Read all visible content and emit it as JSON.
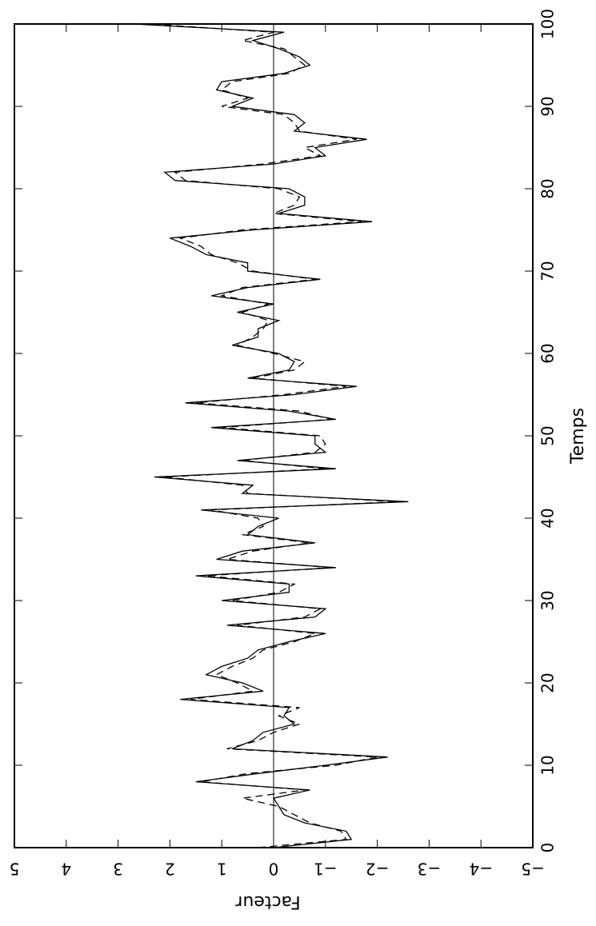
{
  "chart_data": {
    "type": "line",
    "xlabel": "Temps",
    "ylabel": "Facteur",
    "xlim": [
      0,
      100
    ],
    "ylim": [
      -5,
      5
    ],
    "x_ticks": [
      0,
      10,
      20,
      30,
      40,
      50,
      60,
      70,
      80,
      90,
      100
    ],
    "y_ticks": [
      -5,
      -4,
      -3,
      -2,
      -1,
      0,
      1,
      2,
      3,
      4,
      5
    ],
    "x_tick_labels": [
      "0",
      "10",
      "20",
      "30",
      "40",
      "50",
      "60",
      "70",
      "80",
      "90",
      "100"
    ],
    "y_tick_labels": [
      "−5",
      "−4",
      "−3",
      "−2",
      "−1",
      "0",
      "1",
      "2",
      "3",
      "4",
      "5"
    ],
    "zero_line": true,
    "grid": false,
    "series": [
      {
        "style": "solid",
        "x": [
          0,
          1,
          2,
          3,
          4,
          5,
          6,
          7,
          8,
          9,
          10,
          11,
          12,
          13,
          14,
          15,
          16,
          17,
          18,
          19,
          20,
          21,
          22,
          23,
          24,
          25,
          26,
          27,
          28,
          29,
          30,
          31,
          32,
          33,
          34,
          35,
          36,
          37,
          38,
          39,
          40,
          41,
          42,
          43,
          44,
          45,
          46,
          47,
          48,
          49,
          50,
          51,
          52,
          53,
          54,
          55,
          56,
          57,
          58,
          59,
          60,
          61,
          62,
          63,
          64,
          65,
          66,
          67,
          68,
          69,
          70,
          71,
          72,
          73,
          74,
          75,
          76,
          77,
          78,
          79,
          80,
          81,
          82,
          83,
          84,
          85,
          86,
          87,
          88,
          89,
          90,
          91,
          92,
          93,
          94,
          95,
          96,
          97,
          98,
          99,
          100
        ],
        "values": [
          0.0,
          -1.5,
          -1.4,
          -0.6,
          -0.2,
          -0.1,
          0.0,
          -0.7,
          1.5,
          0.3,
          -1.0,
          -2.2,
          0.8,
          0.4,
          0.2,
          -0.4,
          -0.2,
          -0.3,
          1.8,
          0.2,
          0.6,
          1.3,
          1.0,
          0.5,
          0.3,
          -0.3,
          -1.0,
          0.9,
          -0.8,
          -1.0,
          1.0,
          -0.3,
          -0.3,
          1.5,
          -1.2,
          1.1,
          0.6,
          -0.8,
          0.5,
          0.3,
          -0.1,
          1.4,
          -2.6,
          0.6,
          0.4,
          2.3,
          -1.2,
          0.7,
          -1.0,
          -0.8,
          -0.8,
          1.2,
          -1.2,
          -0.3,
          1.7,
          -0.4,
          -1.6,
          0.5,
          -0.3,
          -0.4,
          -0.1,
          0.8,
          0.3,
          0.3,
          -0.1,
          0.7,
          0.0,
          1.2,
          0.5,
          -0.9,
          0.5,
          0.5,
          1.3,
          1.6,
          2.0,
          0.4,
          -1.9,
          -0.1,
          -0.6,
          -0.6,
          -0.3,
          1.9,
          2.1,
          0.0,
          -1.0,
          -0.8,
          -1.8,
          -0.4,
          -0.6,
          -0.4,
          0.8,
          0.4,
          1.1,
          1.0,
          -0.2,
          -0.7,
          -0.5,
          -0.1,
          0.4,
          -0.2,
          2.7
        ]
      },
      {
        "style": "dashed",
        "x": [
          0,
          1,
          2,
          3,
          4,
          5,
          6,
          7,
          8,
          9,
          10,
          11,
          12,
          13,
          14,
          15,
          16,
          17,
          18,
          19,
          20,
          21,
          22,
          23,
          24,
          25,
          26,
          27,
          28,
          29,
          30,
          31,
          32,
          33,
          34,
          35,
          36,
          37,
          38,
          39,
          40,
          41,
          42,
          43,
          44,
          45,
          46,
          47,
          48,
          49,
          50,
          51,
          52,
          53,
          54,
          55,
          56,
          57,
          58,
          59,
          60,
          61,
          62,
          63,
          64,
          65,
          66,
          67,
          68,
          69,
          70,
          71,
          72,
          73,
          74,
          75,
          76,
          77,
          78,
          79,
          80,
          81,
          82,
          83,
          84,
          85,
          86,
          87,
          88,
          89,
          90,
          91,
          92,
          93,
          94,
          95,
          96,
          97,
          98,
          99,
          100
        ],
        "values": [
          0.3,
          -1.4,
          -1.3,
          -0.7,
          -0.4,
          -0.1,
          0.6,
          -0.6,
          1.4,
          0.5,
          -1.2,
          -2.0,
          0.9,
          0.3,
          0.0,
          -0.5,
          -0.1,
          -0.5,
          1.6,
          0.4,
          0.7,
          1.1,
          0.8,
          0.4,
          0.2,
          -0.4,
          -0.8,
          0.7,
          -0.6,
          -0.9,
          0.8,
          -0.1,
          -0.4,
          1.3,
          -1.1,
          0.9,
          0.4,
          -0.7,
          0.6,
          0.2,
          0.3,
          1.2,
          -2.4,
          0.5,
          0.6,
          2.1,
          -1.0,
          0.6,
          -0.8,
          -1.0,
          -0.9,
          1.0,
          -1.1,
          -0.5,
          1.5,
          -0.2,
          -1.4,
          0.4,
          -0.4,
          -0.6,
          0.0,
          0.7,
          0.4,
          0.2,
          0.1,
          0.6,
          0.1,
          1.0,
          0.6,
          -0.8,
          0.4,
          0.7,
          1.2,
          1.4,
          1.8,
          0.6,
          -1.7,
          0.0,
          -0.4,
          -0.5,
          -0.1,
          1.7,
          1.9,
          0.2,
          -0.9,
          -0.6,
          -1.6,
          -0.5,
          -0.4,
          -0.2,
          1.0,
          0.5,
          1.0,
          0.8,
          -0.3,
          -0.6,
          -0.4,
          -0.2,
          0.6,
          0.0,
          2.4
        ]
      }
    ]
  }
}
